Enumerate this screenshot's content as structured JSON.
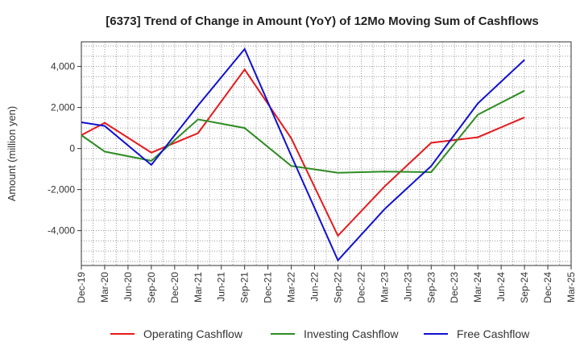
{
  "chart_data": {
    "type": "line",
    "title": "[6373]  Trend of Change in Amount (YoY) of 12Mo Moving Sum of Cashflows",
    "xlabel": "",
    "ylabel": "Amount (million yen)",
    "categories": [
      "Dec-19",
      "Mar-20",
      "Jun-20",
      "Sep-20",
      "Dec-20",
      "Mar-21",
      "Jun-21",
      "Sep-21",
      "Dec-21",
      "Mar-22",
      "Jun-22",
      "Sep-22",
      "Dec-22",
      "Mar-23",
      "Jun-23",
      "Sep-23",
      "Dec-23",
      "Mar-24",
      "Jun-24",
      "Sep-24",
      "Dec-24",
      "Mar-25"
    ],
    "ylim": [
      -5700,
      5200
    ],
    "yticks": [
      -4000,
      -2000,
      0,
      2000,
      4000
    ],
    "ytick_labels": [
      "-4,000",
      "-2,000",
      "0",
      "2,000",
      "4,000"
    ],
    "grid": true,
    "legend_position": "bottom",
    "series": [
      {
        "name": "Operating Cashflow",
        "color": "#e41a1c",
        "values": [
          650,
          1250,
          null,
          -200,
          null,
          750,
          null,
          3850,
          null,
          500,
          null,
          -4250,
          null,
          -1850,
          null,
          280,
          null,
          550,
          null,
          1520,
          null,
          null
        ]
      },
      {
        "name": "Investing Cashflow",
        "color": "#2e8b22",
        "values": [
          650,
          -150,
          null,
          -600,
          null,
          1420,
          null,
          1000,
          null,
          -850,
          null,
          -1180,
          null,
          -1120,
          null,
          -1150,
          null,
          1650,
          null,
          2820,
          null,
          null
        ]
      },
      {
        "name": "Free Cashflow",
        "color": "#1010d0",
        "values": [
          1280,
          1100,
          null,
          -800,
          null,
          2100,
          null,
          4850,
          null,
          -350,
          null,
          -5450,
          null,
          -2950,
          null,
          -850,
          null,
          2200,
          null,
          4320,
          null,
          null
        ]
      }
    ]
  }
}
